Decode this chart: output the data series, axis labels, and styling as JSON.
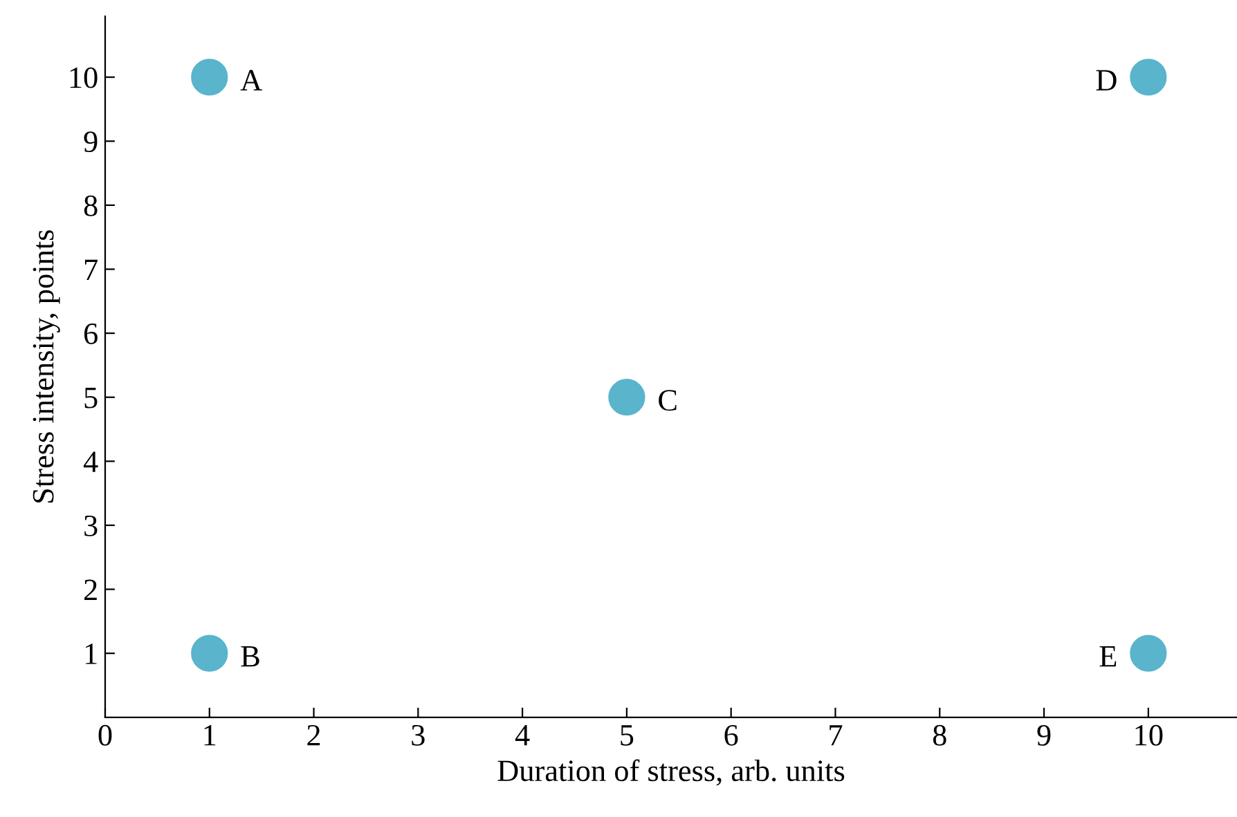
{
  "chart_data": {
    "type": "scatter",
    "xlabel": "Duration of stress, arb. units",
    "ylabel": "Stress intensity, points",
    "x": [
      1,
      1,
      5,
      10,
      10
    ],
    "values": [
      10,
      1,
      5,
      10,
      1
    ],
    "color": "#5ab4cc",
    "marker": "circle",
    "xlim": [
      0,
      10.85
    ],
    "ylim": [
      0,
      10.95
    ],
    "xticks": [
      0,
      1,
      2,
      3,
      4,
      5,
      6,
      7,
      8,
      9,
      10
    ],
    "yticks": [
      1,
      2,
      3,
      4,
      5,
      6,
      7,
      8,
      9,
      10
    ],
    "grid": false,
    "legend": false,
    "annotations": [
      {
        "text": "A",
        "x": 1,
        "y": 10
      },
      {
        "text": "B",
        "x": 1,
        "y": 1
      },
      {
        "text": "C",
        "x": 5,
        "y": 5
      },
      {
        "text": "D",
        "x": 10,
        "y": 10
      },
      {
        "text": "E",
        "x": 10,
        "y": 1
      }
    ]
  }
}
